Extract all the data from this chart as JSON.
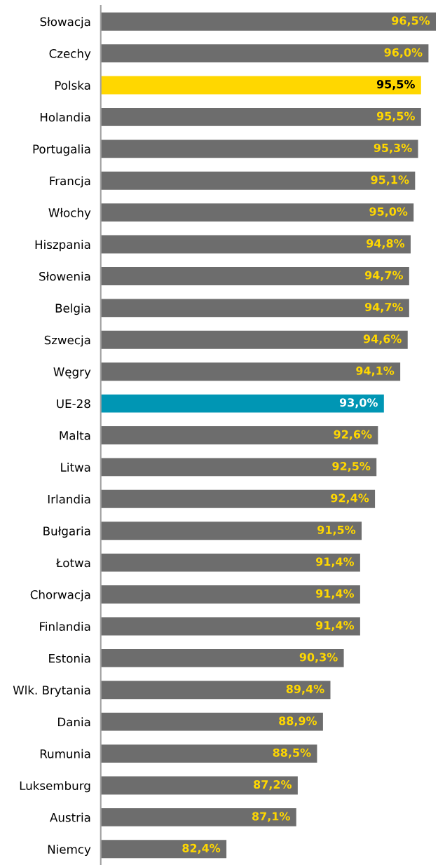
{
  "chart_data": {
    "type": "bar",
    "orientation": "horizontal",
    "categories": [
      "Słowacja",
      "Czechy",
      "Polska",
      "Holandia",
      "Portugalia",
      "Francja",
      "Włochy",
      "Hiszpania",
      "Słowenia",
      "Belgia",
      "Szwecja",
      "Węgry",
      "UE-28",
      "Malta",
      "Litwa",
      "Irlandia",
      "Bułgaria",
      "Łotwa",
      "Chorwacja",
      "Finlandia",
      "Estonia",
      "Wlk. Brytania",
      "Dania",
      "Rumunia",
      "Luksemburg",
      "Austria",
      "Niemcy"
    ],
    "values": [
      96.5,
      96.0,
      95.5,
      95.5,
      95.3,
      95.1,
      95.0,
      94.8,
      94.7,
      94.7,
      94.6,
      94.1,
      93.0,
      92.6,
      92.5,
      92.4,
      91.5,
      91.4,
      91.4,
      91.4,
      90.3,
      89.4,
      88.9,
      88.5,
      87.2,
      87.1,
      82.4
    ],
    "colors": [
      "#6d6d6d",
      "#6d6d6d",
      "#ffd700",
      "#6d6d6d",
      "#6d6d6d",
      "#6d6d6d",
      "#6d6d6d",
      "#6d6d6d",
      "#6d6d6d",
      "#6d6d6d",
      "#6d6d6d",
      "#6d6d6d",
      "#0096b4",
      "#6d6d6d",
      "#6d6d6d",
      "#6d6d6d",
      "#6d6d6d",
      "#6d6d6d",
      "#6d6d6d",
      "#6d6d6d",
      "#6d6d6d",
      "#6d6d6d",
      "#6d6d6d",
      "#6d6d6d",
      "#6d6d6d",
      "#6d6d6d",
      "#6d6d6d"
    ],
    "value_labels": [
      "96,5%",
      "96,0%",
      "95,5%",
      "95,5%",
      "95,3%",
      "95,1%",
      "95,0%",
      "94,8%",
      "94,7%",
      "94,7%",
      "94,6%",
      "94,1%",
      "93,0%",
      "92,6%",
      "92,5%",
      "92,4%",
      "91,5%",
      "91,4%",
      "91,4%",
      "91,4%",
      "90,3%",
      "89,4%",
      "88,9%",
      "88,5%",
      "87,2%",
      "87,1%",
      "82,4%"
    ],
    "tick_labels": "y",
    "grid": false,
    "legend": false
  }
}
